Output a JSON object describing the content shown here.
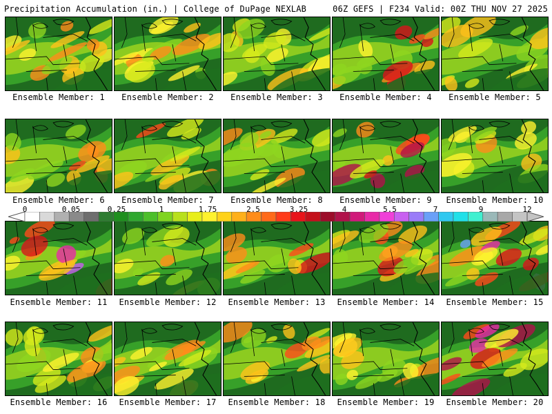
{
  "header": {
    "title": "Precipitation Accumulation (in.) | College of DuPage NEXLAB",
    "run_info": "06Z GEFS | F234 Valid: 00Z THU NOV 27 2025"
  },
  "members": [
    {
      "label": "Ensemble Member: 1"
    },
    {
      "label": "Ensemble Member: 2"
    },
    {
      "label": "Ensemble Member: 3"
    },
    {
      "label": "Ensemble Member: 4"
    },
    {
      "label": "Ensemble Member: 5"
    },
    {
      "label": "Ensemble Member: 6"
    },
    {
      "label": "Ensemble Member: 7"
    },
    {
      "label": "Ensemble Member: 8"
    },
    {
      "label": "Ensemble Member: 9"
    },
    {
      "label": "Ensemble Member: 10"
    },
    {
      "label": "Ensemble Member: 11"
    },
    {
      "label": "Ensemble Member: 12"
    },
    {
      "label": "Ensemble Member: 13"
    },
    {
      "label": "Ensemble Member: 14"
    },
    {
      "label": "Ensemble Member: 15"
    },
    {
      "label": "Ensemble Member: 16"
    },
    {
      "label": "Ensemble Member: 17"
    },
    {
      "label": "Ensemble Member: 18"
    },
    {
      "label": "Ensemble Member: 19"
    },
    {
      "label": "Ensemble Member: 20"
    }
  ],
  "colorbar": {
    "labels": [
      "0",
      "0.05",
      "0.25",
      "1",
      "1.75",
      "2.5",
      "3.25",
      "4",
      "5.5",
      "7",
      "9",
      "12"
    ],
    "colors": [
      "#ffffff",
      "#d9d9d9",
      "#b0b0b0",
      "#8a8a8a",
      "#6e6e6e",
      "#2e7d32",
      "#1e8f1e",
      "#2fa82f",
      "#4cbf2a",
      "#7fd41f",
      "#b8e01c",
      "#e8ee1a",
      "#fff22e",
      "#ffd21a",
      "#ffb01a",
      "#ff8c1a",
      "#ff6a1a",
      "#ff3b1a",
      "#e8141a",
      "#c4101a",
      "#9c0d2a",
      "#b0124a",
      "#d01a7a",
      "#e82aa8",
      "#f040d8",
      "#c860f0",
      "#9a7cf8",
      "#6aa0f8",
      "#30c8f0",
      "#20e0e8",
      "#40f0d0",
      "#9ab8b8",
      "#a8a8a8",
      "#c4c4c4"
    ]
  }
}
